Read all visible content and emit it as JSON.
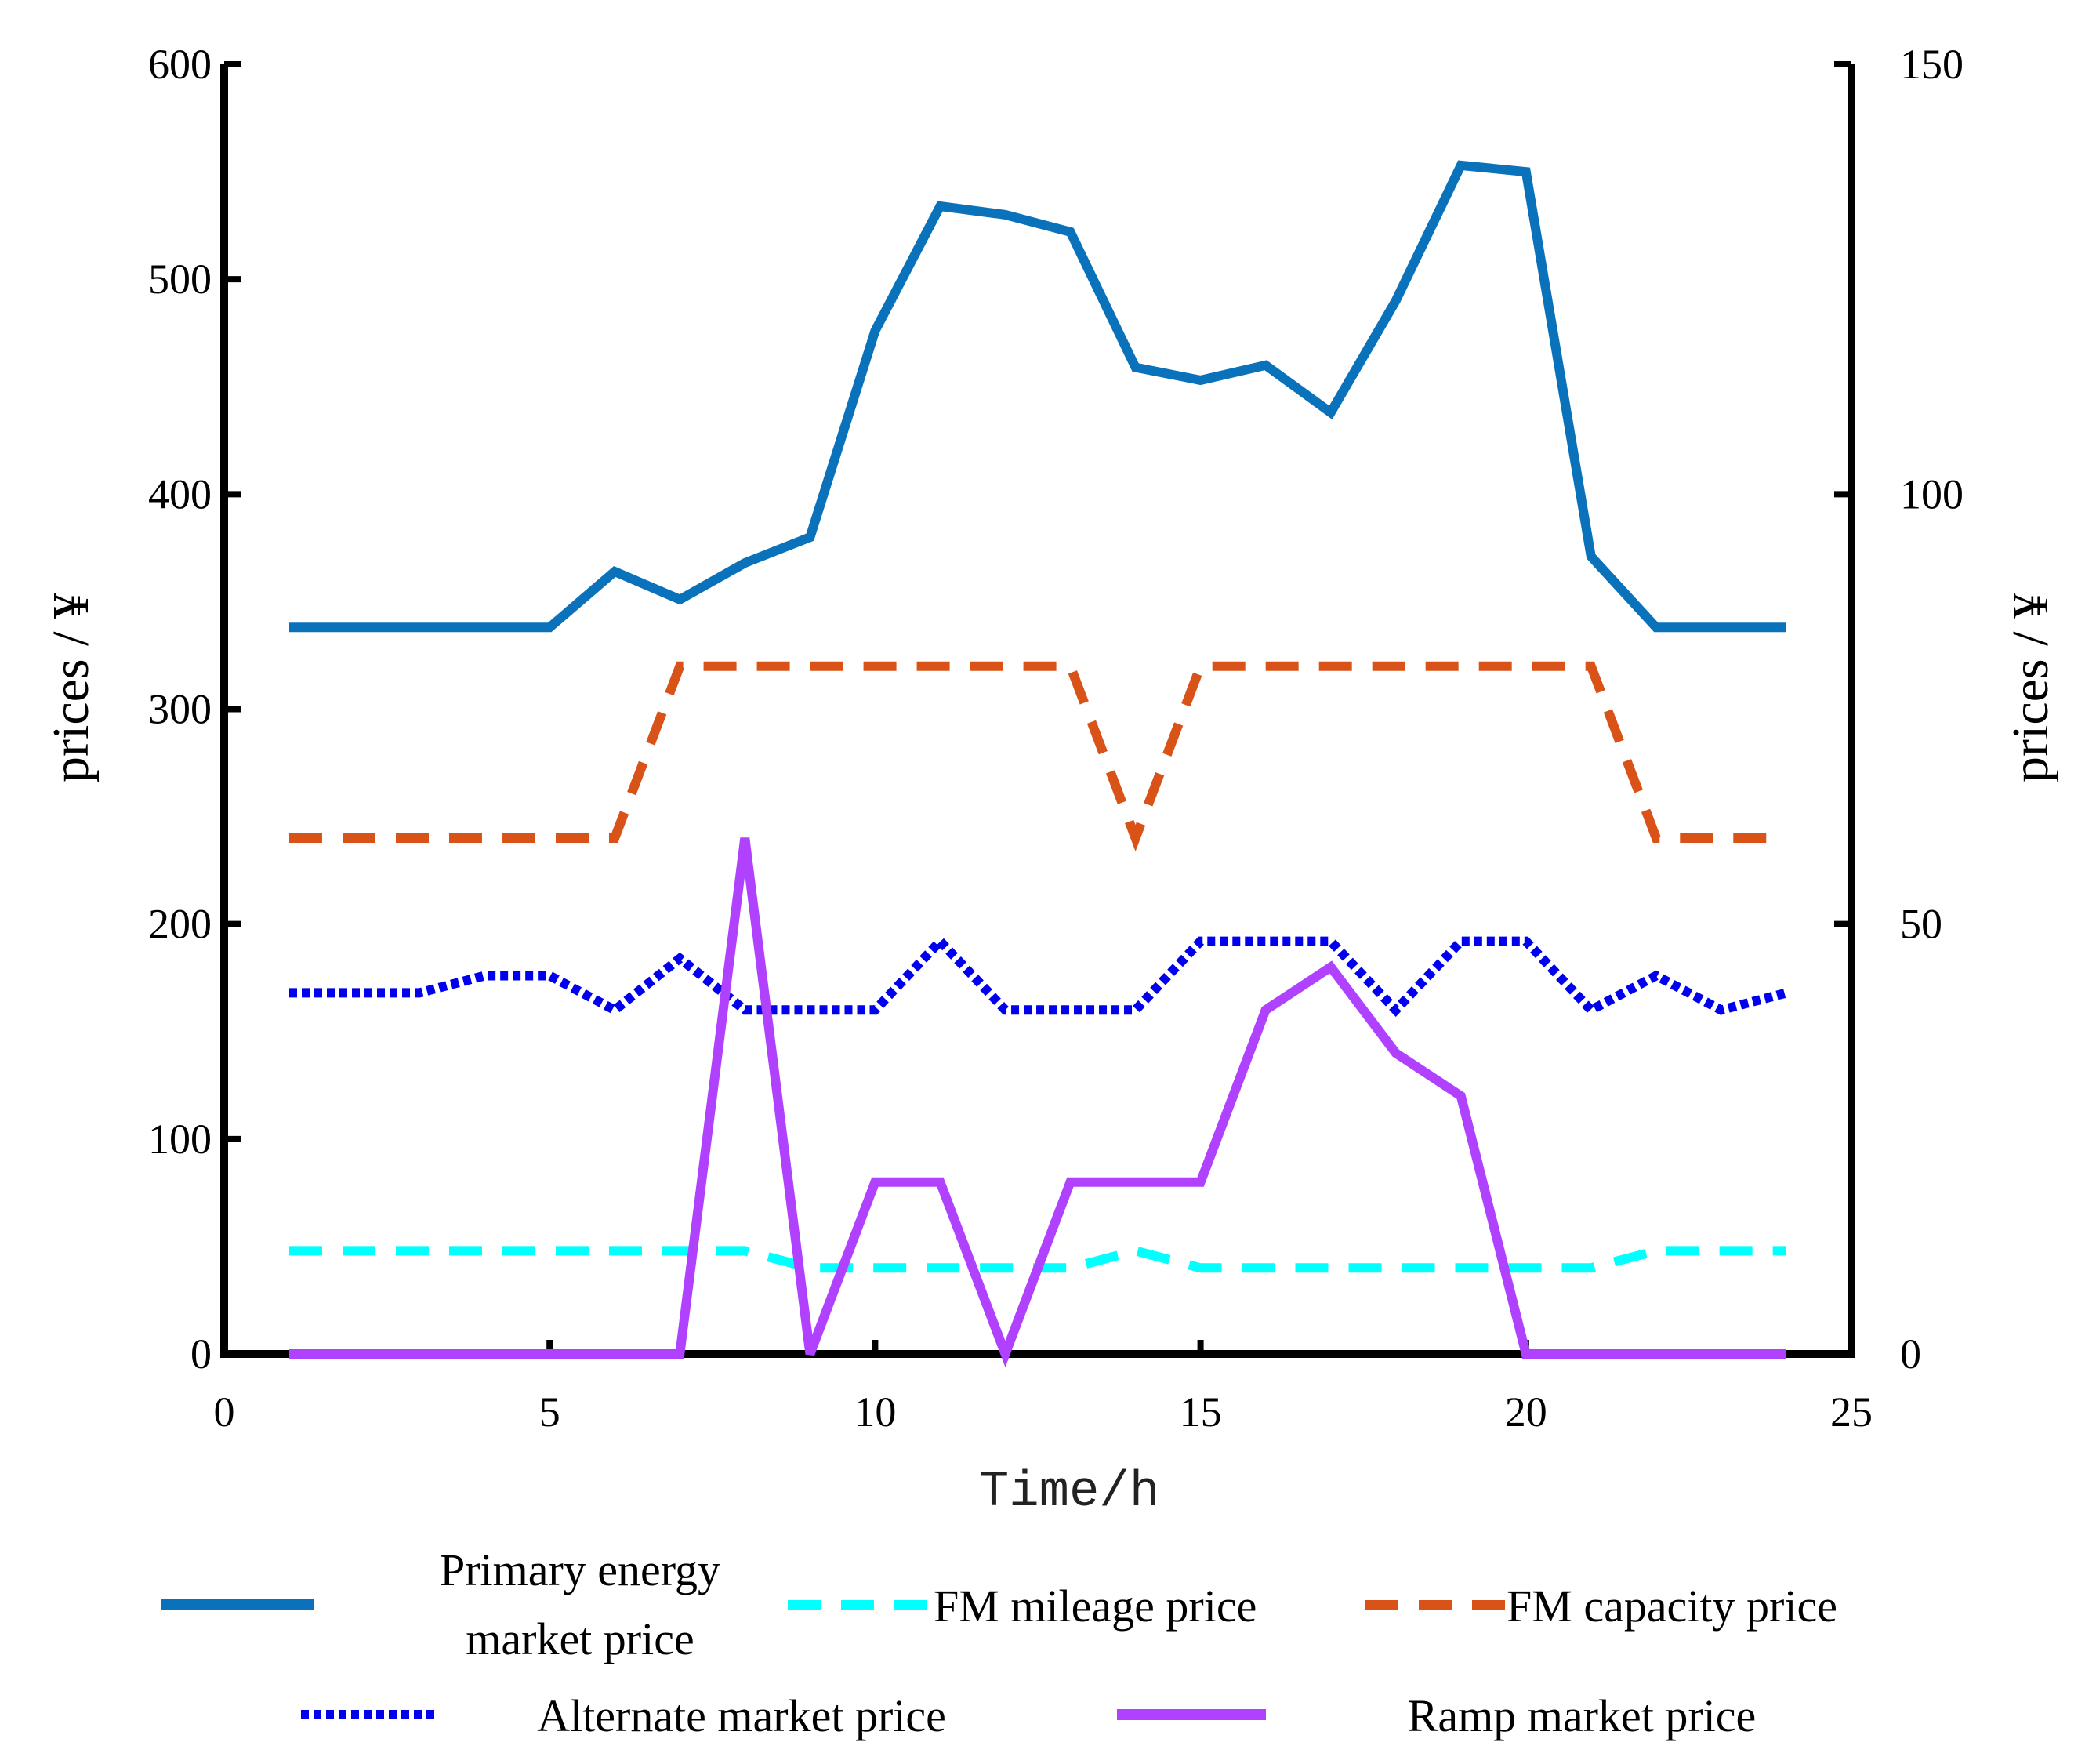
{
  "chart_data": {
    "type": "line",
    "title": "",
    "xlabel": "Time/h",
    "ylabel_left": "prices  / ¥",
    "ylabel_right": "prices  / ¥",
    "xlim": [
      0,
      25
    ],
    "ylim_left": [
      0,
      600
    ],
    "ylim_right": [
      0,
      150
    ],
    "xticks": [
      "0",
      "5",
      "10",
      "15",
      "20",
      "25"
    ],
    "yticks_left": [
      "0",
      "100",
      "200",
      "300",
      "400",
      "500",
      "600"
    ],
    "yticks_right": [
      "0",
      "50",
      "100",
      "150"
    ],
    "grid": false,
    "x": [
      1,
      2,
      3,
      4,
      5,
      6,
      7,
      8,
      9,
      10,
      11,
      12,
      13,
      14,
      15,
      16,
      17,
      18,
      19,
      20,
      21,
      22,
      23,
      24
    ],
    "series": [
      {
        "name": "Primary energy market price",
        "legend_lines": [
          "Primary energy",
          "market price"
        ],
        "axis": "left",
        "style": "solid",
        "color": "#0a72bb",
        "values": [
          338,
          338,
          338,
          338,
          338,
          364,
          351,
          368,
          380,
          476,
          534,
          530,
          522,
          459,
          453,
          460,
          438,
          490,
          553,
          550,
          371,
          338,
          338,
          338
        ]
      },
      {
        "name": "FM mileage price",
        "axis": "left",
        "style": "dashed",
        "color": "#00ffff",
        "values": [
          48,
          48,
          48,
          48,
          48,
          48,
          48,
          48,
          40,
          40,
          40,
          40,
          40,
          48,
          40,
          40,
          40,
          40,
          40,
          40,
          40,
          48,
          48,
          48
        ]
      },
      {
        "name": "FM capacity price",
        "axis": "left",
        "style": "dashed",
        "color": "#d95319",
        "values": [
          240,
          240,
          240,
          240,
          240,
          240,
          320,
          320,
          320,
          320,
          320,
          320,
          320,
          240,
          320,
          320,
          320,
          320,
          320,
          320,
          320,
          240,
          240,
          240
        ]
      },
      {
        "name": "Alternate market price",
        "axis": "left",
        "style": "dotted",
        "color": "#0000ee",
        "values": [
          168,
          168,
          168,
          176,
          176,
          160,
          184,
          160,
          160,
          160,
          192,
          160,
          160,
          160,
          192,
          192,
          192,
          160,
          192,
          192,
          160,
          176,
          160,
          168
        ]
      },
      {
        "name": "Ramp market price",
        "axis": "right",
        "style": "solid",
        "color": "#b041ff",
        "values": [
          0,
          0,
          0,
          0,
          0,
          0,
          0,
          60,
          0,
          20,
          20,
          0,
          20,
          20,
          20,
          40,
          45,
          35,
          30,
          0,
          0,
          0,
          0,
          0
        ]
      }
    ],
    "legend_position": "bottom"
  }
}
